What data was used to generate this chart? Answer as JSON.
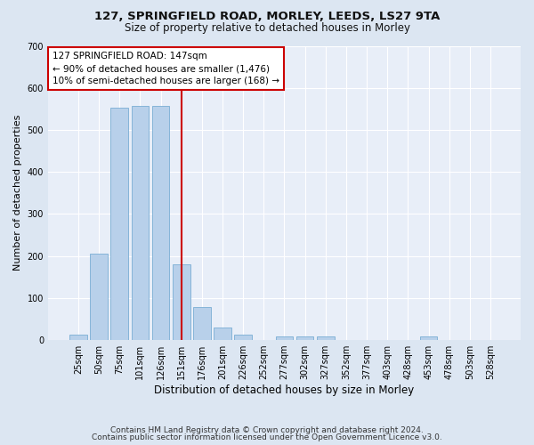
{
  "title": "127, SPRINGFIELD ROAD, MORLEY, LEEDS, LS27 9TA",
  "subtitle": "Size of property relative to detached houses in Morley",
  "xlabel": "Distribution of detached houses by size in Morley",
  "ylabel": "Number of detached properties",
  "bar_labels": [
    "25sqm",
    "50sqm",
    "75sqm",
    "101sqm",
    "126sqm",
    "151sqm",
    "176sqm",
    "201sqm",
    "226sqm",
    "252sqm",
    "277sqm",
    "302sqm",
    "327sqm",
    "352sqm",
    "377sqm",
    "403sqm",
    "428sqm",
    "453sqm",
    "478sqm",
    "503sqm",
    "528sqm"
  ],
  "bar_values": [
    12,
    205,
    553,
    557,
    557,
    180,
    78,
    30,
    12,
    0,
    8,
    8,
    8,
    0,
    0,
    0,
    0,
    8,
    0,
    0,
    0
  ],
  "bar_color": "#b8d0ea",
  "bar_edge_color": "#7aadd4",
  "redline_index": 5,
  "redline_color": "#cc0000",
  "annotation_text": "127 SPRINGFIELD ROAD: 147sqm\n← 90% of detached houses are smaller (1,476)\n10% of semi-detached houses are larger (168) →",
  "annotation_box_color": "#ffffff",
  "annotation_edge_color": "#cc0000",
  "ylim": [
    0,
    700
  ],
  "yticks": [
    0,
    100,
    200,
    300,
    400,
    500,
    600,
    700
  ],
  "bg_color": "#dce6f2",
  "plot_bg_color": "#e8eef8",
  "grid_color": "#ffffff",
  "title_fontsize": 9.5,
  "subtitle_fontsize": 8.5,
  "ylabel_fontsize": 8,
  "xlabel_fontsize": 8.5,
  "tick_fontsize": 7,
  "ann_fontsize": 7.5,
  "footer_line1": "Contains HM Land Registry data © Crown copyright and database right 2024.",
  "footer_line2": "Contains public sector information licensed under the Open Government Licence v3.0."
}
